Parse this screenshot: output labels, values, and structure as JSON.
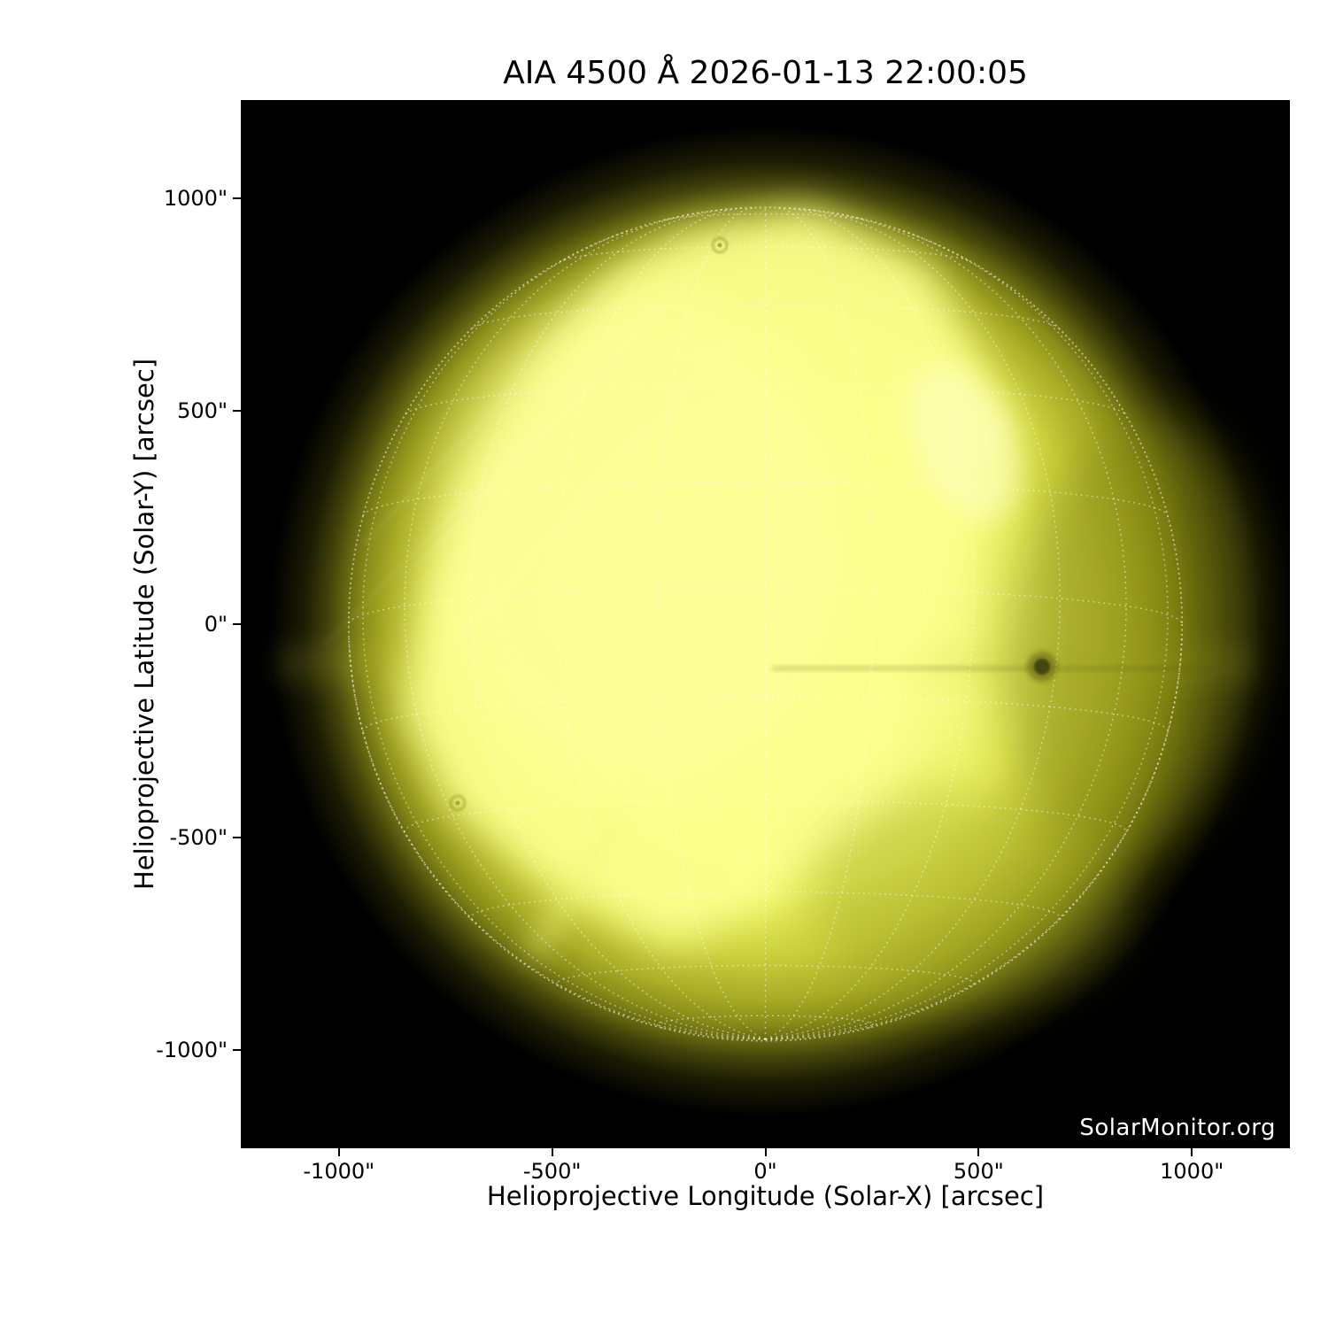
{
  "title": "AIA 4500 Å 2026-01-13 22:00:05",
  "watermark": "SolarMonitor.org",
  "chart_data": {
    "type": "heatmap",
    "title": "AIA 4500 Å 2026-01-13 22:00:05",
    "xlabel": "Helioprojective Longitude (Solar-X) [arcsec]",
    "ylabel": "Helioprojective Latitude (Solar-Y) [arcsec]",
    "xlim": [
      -1230,
      1230
    ],
    "ylim": [
      -1230,
      1230
    ],
    "x_ticks": [
      {
        "value": -1000,
        "label": "-1000\""
      },
      {
        "value": -500,
        "label": "-500\""
      },
      {
        "value": 0,
        "label": "0\""
      },
      {
        "value": 500,
        "label": "500\""
      },
      {
        "value": 1000,
        "label": "1000\""
      }
    ],
    "y_ticks": [
      {
        "value": 1000,
        "label": "1000\""
      },
      {
        "value": 500,
        "label": "500\""
      },
      {
        "value": 0,
        "label": "0\""
      },
      {
        "value": -500,
        "label": "-500\""
      },
      {
        "value": -1000,
        "label": "-1000\""
      }
    ],
    "grid": {
      "spacing_deg": 15,
      "b0_deg": -5,
      "style": "dotted-white"
    },
    "solar_disk": {
      "radius_arcsec": 977,
      "center_arcsec": [
        0,
        0
      ],
      "colors": {
        "core": "#fdff8e",
        "bright": "#f4f878",
        "mid": "#ccd13e",
        "limb": "#6e7012",
        "background": "#000000"
      }
    },
    "features": [
      {
        "name": "sunspot",
        "x_arcsec": 649,
        "y_arcsec": -106
      },
      {
        "name": "ring-artifact",
        "x_arcsec": -108,
        "y_arcsec": 882
      },
      {
        "name": "ring-artifact",
        "x_arcsec": -723,
        "y_arcsec": -426
      },
      {
        "name": "horizontal-band",
        "y_arcsec": -110
      }
    ]
  }
}
